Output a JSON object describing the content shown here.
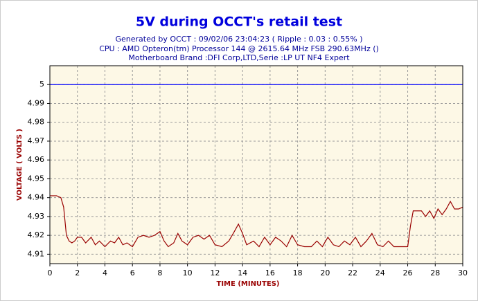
{
  "chart_data": {
    "type": "line",
    "title": "5V during OCCT's retail test",
    "subtitle": [
      "Generated by OCCT : 09/02/06 23:04:23 ( Ripple : 0.03 : 0.55% )",
      "CPU : AMD Opteron(tm) Processor 144    @ 2615.64 MHz FSB 290.63MHz ()",
      "Motherboard Brand :DFI Corp,LTD,Serie :LP UT NF4 Expert"
    ],
    "x_label": "TIME (MINUTES)",
    "y_label": "VOLTAGE ( VOLTS )",
    "xlim": [
      0,
      30
    ],
    "xticks": [
      0,
      2,
      4,
      6,
      8,
      10,
      12,
      14,
      16,
      18,
      20,
      22,
      24,
      26,
      28,
      30
    ],
    "ylim": [
      4.905,
      5.01
    ],
    "yticks": [
      4.91,
      4.92,
      4.93,
      4.94,
      4.95,
      4.96,
      4.97,
      4.98,
      4.99,
      5
    ],
    "grid": true,
    "hlines": [
      {
        "value": 5,
        "color": "#0000ff"
      }
    ],
    "series": [
      {
        "color": "#990000",
        "x": [
          0,
          0.5,
          0.8,
          1.0,
          1.2,
          1.4,
          1.6,
          1.8,
          2.0,
          2.3,
          2.6,
          3.0,
          3.3,
          3.6,
          4.0,
          4.4,
          4.7,
          5.0,
          5.3,
          5.6,
          6.0,
          6.4,
          6.8,
          7.2,
          7.6,
          8.0,
          8.3,
          8.6,
          9.0,
          9.3,
          9.6,
          10.0,
          10.4,
          10.8,
          11.2,
          11.6,
          12.0,
          12.5,
          13.0,
          13.4,
          13.7,
          14.0,
          14.3,
          14.8,
          15.2,
          15.6,
          16.0,
          16.4,
          16.8,
          17.2,
          17.6,
          18.0,
          18.5,
          19.0,
          19.4,
          19.8,
          20.2,
          20.6,
          21.0,
          21.4,
          21.8,
          22.2,
          22.6,
          23.0,
          23.4,
          23.8,
          24.2,
          24.6,
          25.0,
          25.5,
          26.0,
          26.2,
          26.4,
          27.0,
          27.3,
          27.6,
          27.9,
          28.2,
          28.5,
          28.8,
          29.1,
          29.4,
          29.7,
          30
        ],
        "values": [
          4.941,
          4.941,
          4.94,
          4.935,
          4.92,
          4.917,
          4.916,
          4.917,
          4.919,
          4.919,
          4.916,
          4.919,
          4.915,
          4.917,
          4.914,
          4.917,
          4.916,
          4.919,
          4.915,
          4.916,
          4.914,
          4.919,
          4.92,
          4.919,
          4.92,
          4.922,
          4.917,
          4.914,
          4.916,
          4.921,
          4.917,
          4.915,
          4.919,
          4.92,
          4.918,
          4.92,
          4.915,
          4.914,
          4.917,
          4.922,
          4.926,
          4.921,
          4.915,
          4.917,
          4.914,
          4.919,
          4.915,
          4.919,
          4.917,
          4.914,
          4.92,
          4.915,
          4.914,
          4.914,
          4.917,
          4.914,
          4.919,
          4.915,
          4.914,
          4.917,
          4.915,
          4.919,
          4.914,
          4.917,
          4.921,
          4.915,
          4.914,
          4.917,
          4.914,
          4.914,
          4.914,
          4.925,
          4.933,
          4.933,
          4.93,
          4.933,
          4.929,
          4.934,
          4.931,
          4.934,
          4.938,
          4.934,
          4.934,
          4.935
        ]
      }
    ]
  }
}
